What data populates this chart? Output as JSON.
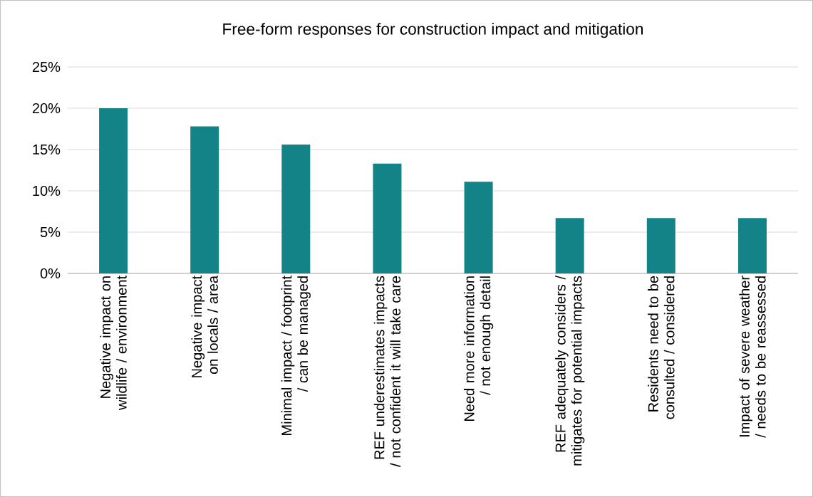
{
  "chart_data": {
    "type": "bar",
    "title": "Free-form responses for construction impact and mitigation",
    "categories": [
      "Negative impact on wildlife / environment",
      "Negative impact on locals / area",
      "Minimal impact / footprint / can be managed",
      "REF underestimates impacts / not confident it will take care",
      "Need more information / not enough detail",
      "REF adequately considers / mitigates for potential impacts",
      "Residents need to be consulted / considered",
      "Impact of severe weather / needs to be reassessed"
    ],
    "values": [
      20,
      17.8,
      15.6,
      13.3,
      11.1,
      6.7,
      6.7,
      6.7
    ],
    "color": "#138387",
    "ylim": [
      0,
      25
    ],
    "yticks": [
      {
        "value": 0,
        "label": "0%"
      },
      {
        "value": 5,
        "label": "5%"
      },
      {
        "value": 10,
        "label": "10%"
      },
      {
        "value": 15,
        "label": "15%"
      },
      {
        "value": 20,
        "label": "20%"
      },
      {
        "value": 25,
        "label": "25%"
      }
    ],
    "grid": "y"
  }
}
